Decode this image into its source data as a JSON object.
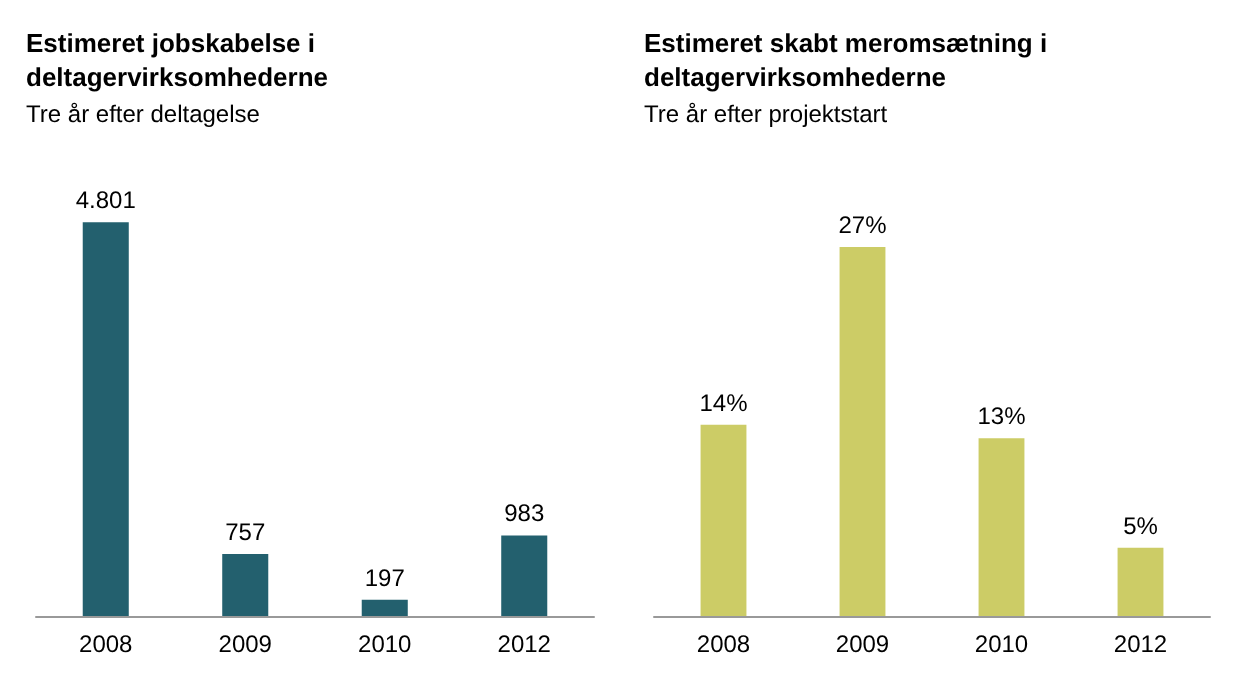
{
  "chart_data": [
    {
      "type": "bar",
      "title": "Estimeret jobskabelse i\ndeltagervirksomhederne",
      "subtitle": "Tre år efter deltagelse",
      "categories": [
        "2008",
        "2009",
        "2010",
        "2012"
      ],
      "tick_labels": "x",
      "values": [
        4801,
        757,
        197,
        983
      ],
      "value_labels": [
        "4.801",
        "757",
        "197",
        "983"
      ],
      "color": "#23606e"
    },
    {
      "type": "bar",
      "title": "Estimeret skabt meromsætning i\ndeltagervirksomhederne",
      "subtitle": "Tre år efter projektstart",
      "categories": [
        "2008",
        "2009",
        "2010",
        "2012"
      ],
      "tick_labels": "x",
      "values": [
        14,
        27,
        13,
        5
      ],
      "value_labels": [
        "14%",
        "27%",
        "13%",
        "5%"
      ],
      "color": "#cccc66"
    }
  ]
}
